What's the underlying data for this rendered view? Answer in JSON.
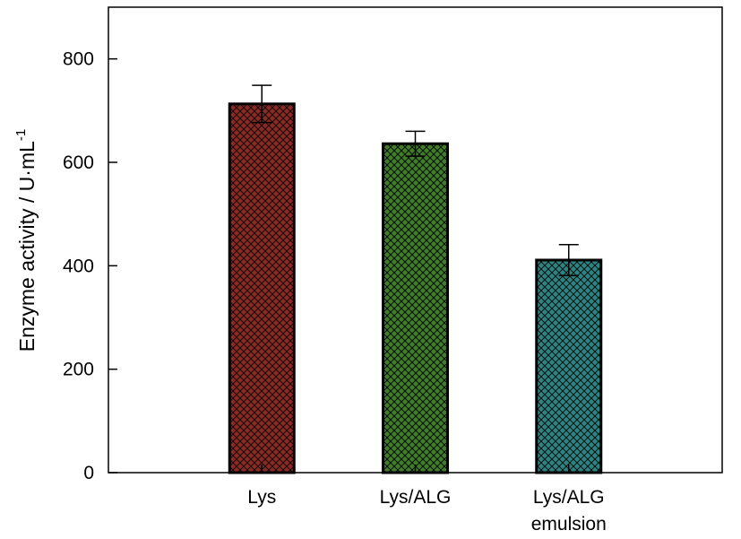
{
  "chart_data": {
    "type": "bar",
    "categories": [
      [
        "Lys"
      ],
      [
        "Lys/ALG"
      ],
      [
        "Lys/ALG",
        "emulsion"
      ]
    ],
    "values": [
      713,
      636,
      411
    ],
    "errors": [
      36,
      24,
      30
    ],
    "ylabel": "Enzyme activity / U·mL",
    "ylabel_superscript": "-1",
    "ylim": [
      0,
      900
    ],
    "yticks": [
      0,
      200,
      400,
      600,
      800
    ],
    "ytick_labels": [
      "0",
      "200",
      "400",
      "600",
      "800"
    ],
    "bar_colors": [
      "#8b2a25",
      "#3f7d28",
      "#2b8482"
    ],
    "bar_fill_pattern": "crosshatch",
    "grid": false,
    "legend": "none"
  }
}
